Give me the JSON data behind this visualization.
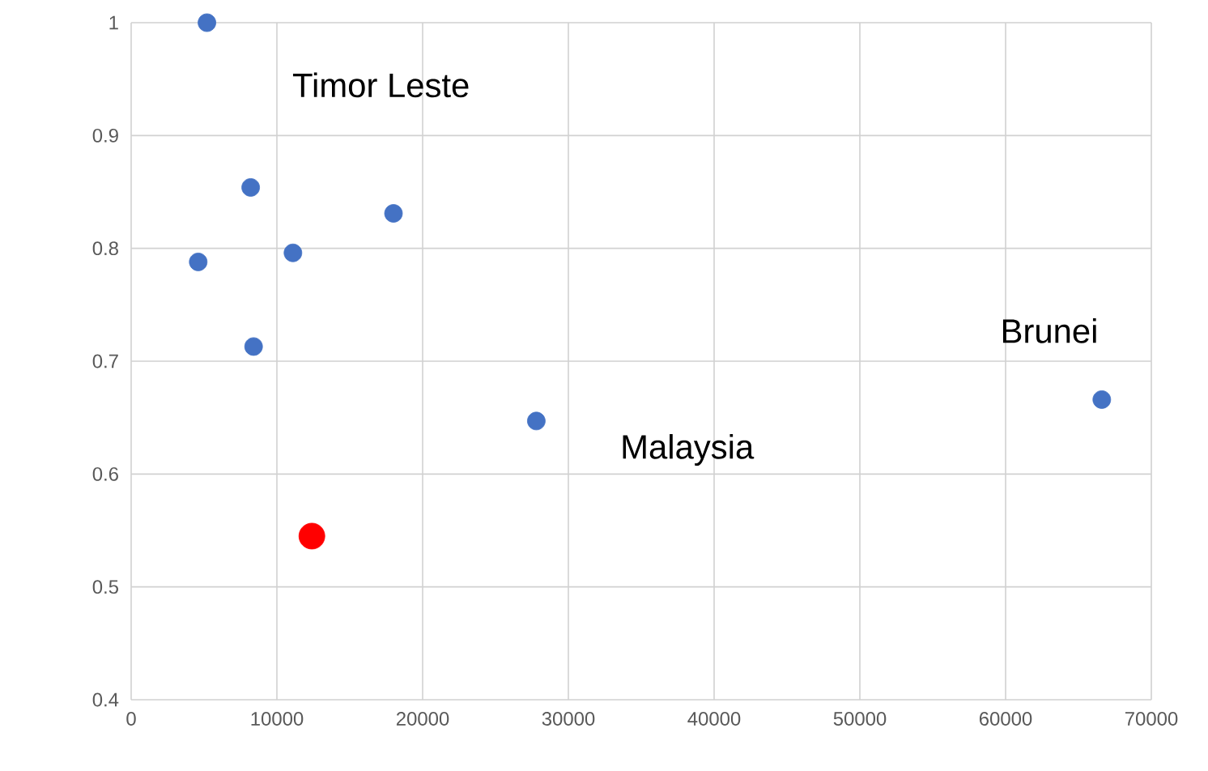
{
  "chart_data": {
    "type": "scatter",
    "series": [
      {
        "color": "#4472c4",
        "x": [
          5200,
          8200,
          18000,
          4600,
          11100,
          8400,
          27800,
          66600
        ],
        "values": [
          1.0,
          0.854,
          0.831,
          0.788,
          0.796,
          0.713,
          0.647,
          0.666
        ]
      },
      {
        "color": "#ff0000",
        "x": [
          12400
        ],
        "values": [
          0.545
        ]
      }
    ],
    "xlim": [
      0,
      70000
    ],
    "ylim": [
      0.4,
      1
    ],
    "xticks": [
      0,
      10000,
      20000,
      30000,
      40000,
      50000,
      60000,
      70000
    ],
    "yticks": [
      0.4,
      0.5,
      0.6,
      0.7,
      0.8,
      0.9,
      1
    ],
    "grid": true,
    "annotations": [
      "Timor Leste",
      "Malaysia",
      "Brunei"
    ]
  }
}
